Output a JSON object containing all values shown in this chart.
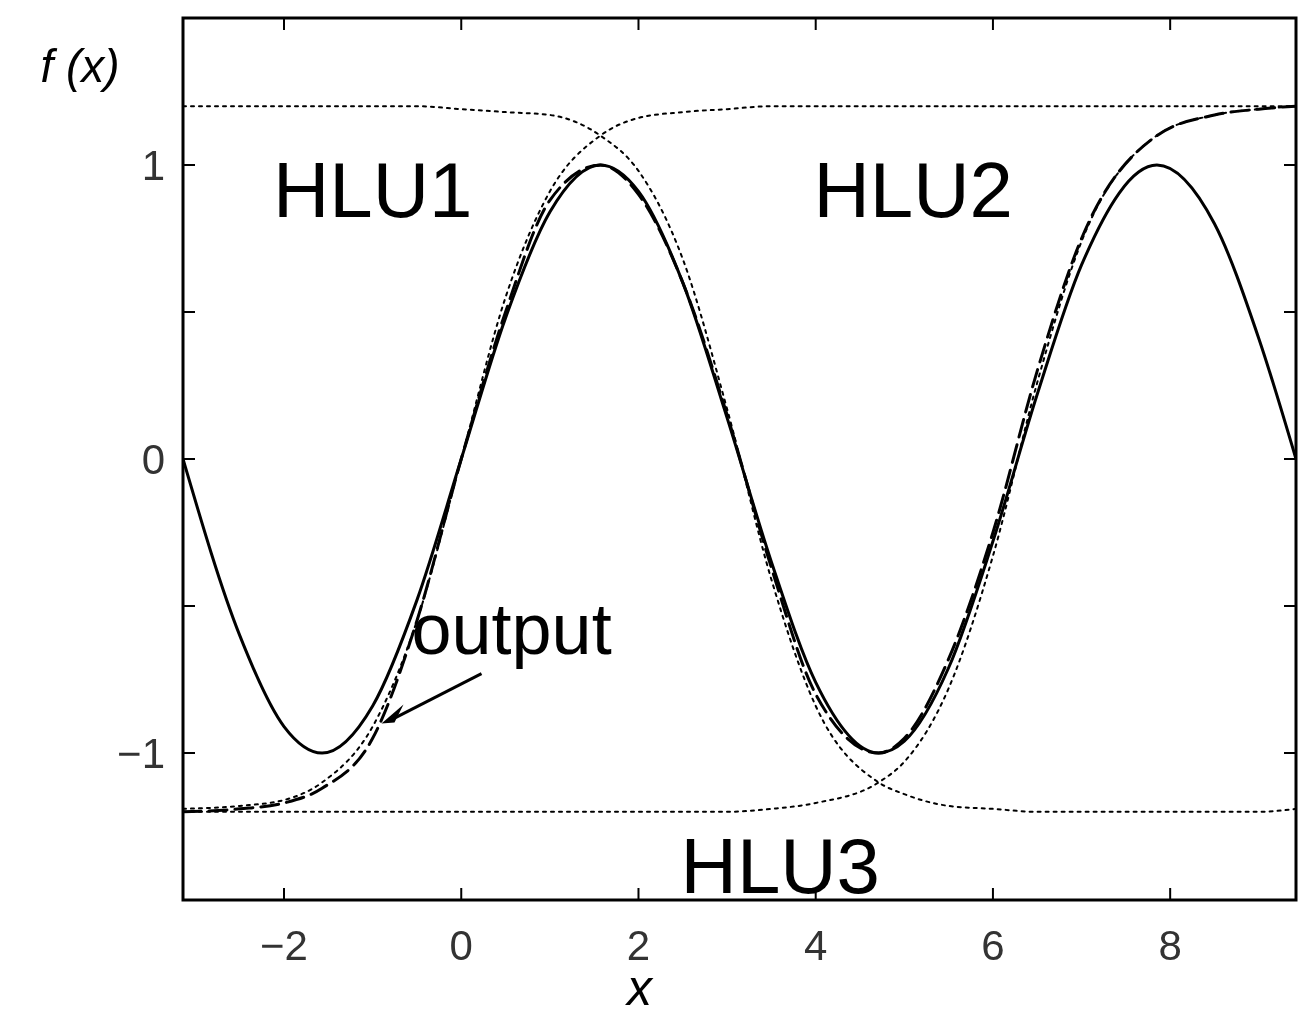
{
  "chart_data": {
    "type": "line",
    "xlabel": "x",
    "ylabel": "f (x)",
    "x": [
      -3.14,
      -2.5,
      -2,
      -1.57,
      -1,
      -0.5,
      0,
      0.5,
      1,
      1.57,
      2,
      2.5,
      3,
      3.5,
      4,
      4.71,
      5,
      5.5,
      6,
      6.5,
      7,
      7.85,
      8.5,
      9,
      9.42
    ],
    "series": [
      {
        "color": "#000000",
        "line_style": "solid",
        "values": [
          0,
          -0.6,
          -0.91,
          -1,
          -0.84,
          -0.48,
          0,
          0.48,
          0.84,
          1,
          0.91,
          0.6,
          0.14,
          -0.35,
          -0.76,
          -1,
          -0.96,
          -0.71,
          -0.28,
          0.22,
          0.66,
          1,
          0.8,
          0.41,
          0
        ]
      },
      {
        "color": "#000000",
        "line_style": "dashed",
        "values": [
          -1.2,
          -1.19,
          -1.17,
          -1.12,
          -0.95,
          -0.55,
          0,
          0.5,
          0.88,
          1,
          0.9,
          0.6,
          0.15,
          -0.37,
          -0.8,
          -1,
          -0.95,
          -0.68,
          -0.25,
          0.3,
          0.75,
          1.1,
          1.17,
          1.19,
          1.2
        ]
      },
      {
        "name": "HLU1",
        "color": "#000000",
        "line_style": "dotted",
        "values": [
          1.2,
          1.2,
          1.2,
          1.2,
          1.2,
          1.2,
          1.19,
          1.18,
          1.17,
          1.1,
          0.98,
          0.68,
          0.17,
          -0.41,
          -0.84,
          -1.1,
          -1.14,
          -1.18,
          -1.19,
          -1.2,
          -1.2,
          -1.2,
          -1.2,
          -1.2,
          -1.19
        ]
      },
      {
        "name": "HLU2",
        "color": "#000000",
        "line_style": "dotted",
        "values": [
          -1.19,
          -1.18,
          -1.16,
          -1.1,
          -0.91,
          -0.55,
          0,
          0.55,
          0.91,
          1.1,
          1.16,
          1.18,
          1.19,
          1.2,
          1.2,
          1.2,
          1.2,
          1.2,
          1.2,
          1.2,
          1.2,
          1.2,
          1.2,
          1.2,
          1.2
        ]
      },
      {
        "name": "HLU3",
        "color": "#000000",
        "line_style": "dotted",
        "values": [
          -1.2,
          -1.2,
          -1.2,
          -1.2,
          -1.2,
          -1.2,
          -1.2,
          -1.2,
          -1.2,
          -1.2,
          -1.2,
          -1.2,
          -1.2,
          -1.19,
          -1.17,
          -1.1,
          -1.03,
          -0.78,
          -0.33,
          0.26,
          0.74,
          1.1,
          1.17,
          1.19,
          1.2
        ]
      }
    ],
    "annotations": [
      {
        "text": "output",
        "x": -0.9,
        "y": -0.9
      }
    ],
    "xlim": [
      -3.14,
      9.42
    ],
    "xticks": [
      -2,
      0,
      2,
      4,
      6,
      8
    ],
    "ylim": [
      -1.5,
      1.5
    ],
    "yticks": [
      {
        "value": -1,
        "label": "−1"
      },
      {
        "value": -0.5,
        "label": null
      },
      0,
      {
        "value": 0.5,
        "label": null
      },
      1
    ],
    "grid": false
  }
}
